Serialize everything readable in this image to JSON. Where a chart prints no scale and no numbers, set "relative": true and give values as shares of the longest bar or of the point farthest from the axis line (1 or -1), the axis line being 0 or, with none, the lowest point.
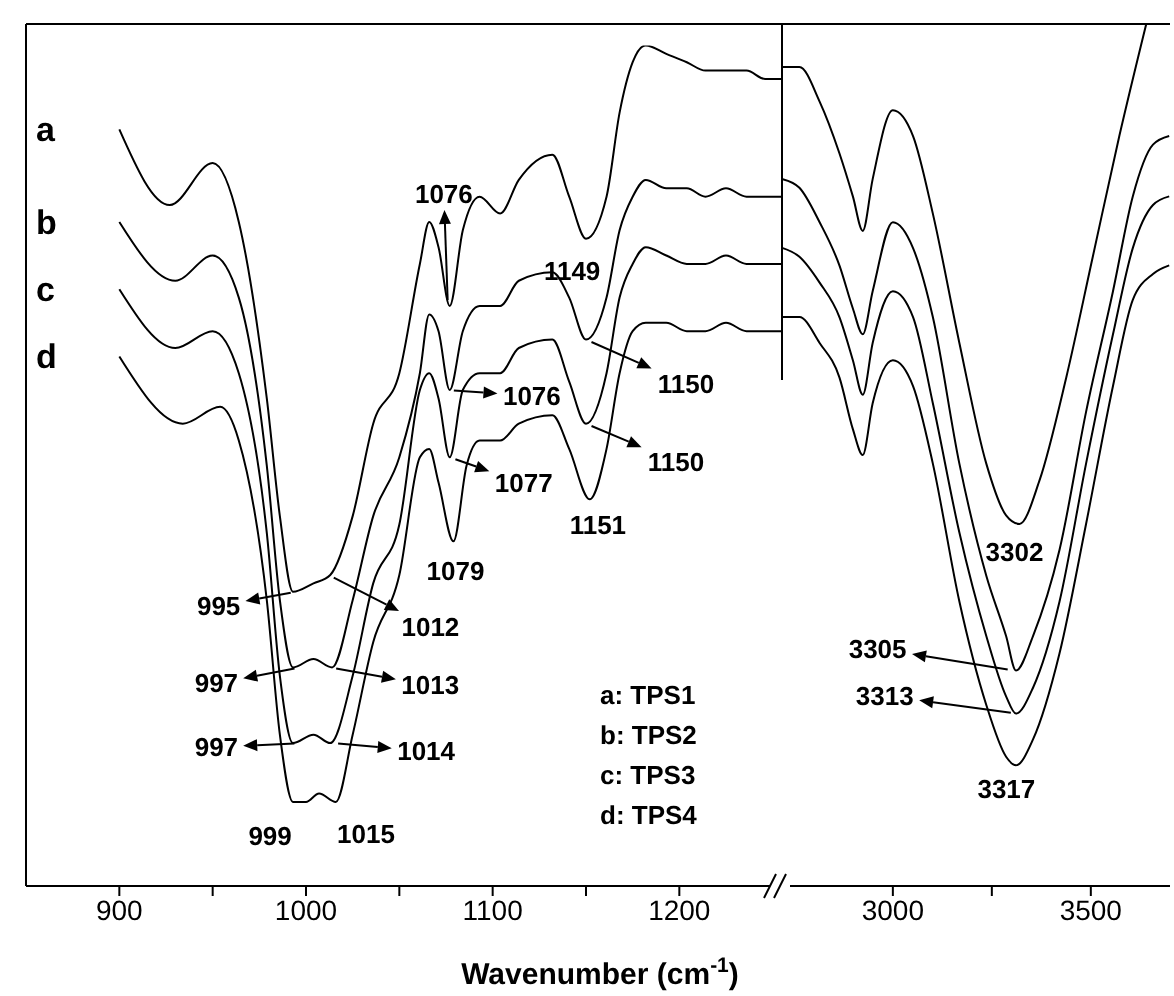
{
  "chart_data": [
    {
      "type": "line",
      "relative": true,
      "xlabel": "Wavenumber (cm$^{-1}$)",
      "xlim": [
        850,
        1255
      ],
      "xticks": [
        900,
        {
          "value": 950,
          "label": null
        },
        1000,
        {
          "value": 1050,
          "label": null
        },
        1100,
        {
          "value": 1150,
          "label": null
        },
        1200
      ],
      "series": [
        {
          "name": "a",
          "color": "#000000",
          "x": [
            900,
            927,
            950,
            964,
            979,
            986,
            993,
            1004,
            1013,
            1025,
            1036,
            1050,
            1061,
            1066,
            1071,
            1077,
            1084,
            1093,
            1104,
            1114,
            1132,
            1141,
            1150,
            1161,
            1168,
            1175,
            1182,
            1193,
            1204,
            1214,
            1225,
            1236,
            1246,
            1255
          ],
          "values": [
            0.9,
            0.81,
            0.86,
            0.79,
            0.58,
            0.44,
            0.35,
            0.36,
            0.37,
            0.44,
            0.55,
            0.61,
            0.74,
            0.79,
            0.76,
            0.69,
            0.78,
            0.82,
            0.8,
            0.84,
            0.87,
            0.82,
            0.77,
            0.82,
            0.92,
            0.98,
            1.0,
            0.99,
            0.98,
            0.97,
            0.97,
            0.97,
            0.96,
            0.96
          ]
        },
        {
          "name": "b",
          "color": "#000000",
          "x": [
            900,
            930,
            950,
            964,
            979,
            986,
            993,
            1004,
            1014,
            1025,
            1036,
            1050,
            1061,
            1066,
            1071,
            1077,
            1084,
            1093,
            1104,
            1114,
            1132,
            1141,
            1150,
            1161,
            1168,
            1175,
            1182,
            1193,
            1204,
            1214,
            1225,
            1236,
            1246,
            1255
          ],
          "values": [
            0.79,
            0.72,
            0.75,
            0.7,
            0.5,
            0.34,
            0.26,
            0.27,
            0.26,
            0.34,
            0.44,
            0.51,
            0.61,
            0.68,
            0.66,
            0.59,
            0.66,
            0.69,
            0.69,
            0.72,
            0.73,
            0.7,
            0.65,
            0.7,
            0.78,
            0.82,
            0.84,
            0.83,
            0.83,
            0.82,
            0.83,
            0.82,
            0.82,
            0.82
          ]
        },
        {
          "name": "c",
          "color": "#000000",
          "x": [
            900,
            930,
            950,
            964,
            979,
            986,
            993,
            1004,
            1013,
            1025,
            1036,
            1050,
            1061,
            1066,
            1071,
            1077,
            1084,
            1093,
            1104,
            1114,
            1132,
            1141,
            1150,
            1161,
            1168,
            1175,
            1182,
            1193,
            1204,
            1214,
            1225,
            1236,
            1246,
            1255
          ],
          "values": [
            0.71,
            0.64,
            0.66,
            0.61,
            0.42,
            0.25,
            0.17,
            0.18,
            0.17,
            0.25,
            0.36,
            0.43,
            0.59,
            0.61,
            0.58,
            0.51,
            0.59,
            0.61,
            0.61,
            0.64,
            0.65,
            0.6,
            0.55,
            0.61,
            0.7,
            0.74,
            0.76,
            0.75,
            0.74,
            0.74,
            0.75,
            0.74,
            0.74,
            0.74
          ]
        },
        {
          "name": "d",
          "color": "#000000",
          "x": [
            900,
            934,
            954,
            964,
            979,
            986,
            993,
            1000,
            1007,
            1016,
            1025,
            1036,
            1050,
            1061,
            1066,
            1071,
            1079,
            1086,
            1093,
            1104,
            1114,
            1132,
            1141,
            1152,
            1161,
            1168,
            1175,
            1182,
            1193,
            1204,
            1214,
            1225,
            1236,
            1246,
            1255
          ],
          "values": [
            0.63,
            0.55,
            0.57,
            0.53,
            0.34,
            0.18,
            0.1,
            0.1,
            0.11,
            0.1,
            0.18,
            0.29,
            0.37,
            0.51,
            0.52,
            0.48,
            0.41,
            0.5,
            0.53,
            0.53,
            0.55,
            0.56,
            0.52,
            0.46,
            0.52,
            0.61,
            0.66,
            0.67,
            0.67,
            0.66,
            0.66,
            0.67,
            0.66,
            0.66,
            0.66
          ]
        }
      ],
      "annotations": [
        {
          "text": "1076",
          "x": 1076,
          "y": 0.59
        },
        {
          "text": "1149",
          "x": 1149,
          "y": 0.77
        },
        {
          "text": "1150",
          "x": 1150,
          "y": 0.65
        },
        {
          "text": "1076",
          "x": 1076,
          "y": 0.69
        },
        {
          "text": "1150",
          "x": 1150,
          "y": 0.55
        },
        {
          "text": "1077",
          "x": 1077,
          "y": 0.51
        },
        {
          "text": "1151",
          "x": 1151,
          "y": 0.46
        },
        {
          "text": "1079",
          "x": 1079,
          "y": 0.41
        },
        {
          "text": "995",
          "x": 995,
          "y": 0.35
        },
        {
          "text": "1012",
          "x": 1012,
          "y": 0.37
        },
        {
          "text": "997",
          "x": 997,
          "y": 0.26
        },
        {
          "text": "1013",
          "x": 1013,
          "y": 0.26
        },
        {
          "text": "997",
          "x": 997,
          "y": 0.17
        },
        {
          "text": "1014",
          "x": 1014,
          "y": 0.17
        },
        {
          "text": "999",
          "x": 999,
          "y": 0.1
        },
        {
          "text": "1015",
          "x": 1015,
          "y": 0.1
        },
        "a: TPS1",
        "b: TPS2",
        "c: TPS3",
        "d: TPS4"
      ]
    },
    {
      "type": "line",
      "relative": true,
      "xlim": [
        2720,
        3700
      ],
      "xticks": [
        3000,
        {
          "value": 3250,
          "label": null
        },
        3500
      ],
      "series": [
        {
          "color": "#000000",
          "x": [
            2722,
            2764,
            2815,
            2865,
            2899,
            2924,
            2949,
            3000,
            3051,
            3101,
            3168,
            3236,
            3286,
            3320,
            3370,
            3438,
            3505,
            3572,
            3640
          ],
          "values": [
            0.95,
            0.95,
            0.91,
            0.85,
            0.8,
            0.76,
            0.82,
            0.9,
            0.87,
            0.78,
            0.63,
            0.49,
            0.43,
            0.42,
            0.47,
            0.59,
            0.73,
            0.87,
            1.0
          ]
        },
        {
          "color": "#000000",
          "x": [
            2722,
            2764,
            2815,
            2865,
            2899,
            2924,
            2949,
            3000,
            3051,
            3101,
            3168,
            3236,
            3286,
            3311,
            3354,
            3421,
            3488,
            3556,
            3606,
            3657,
            3698
          ],
          "values": [
            0.82,
            0.81,
            0.77,
            0.72,
            0.67,
            0.64,
            0.69,
            0.77,
            0.74,
            0.66,
            0.49,
            0.36,
            0.29,
            0.25,
            0.29,
            0.39,
            0.55,
            0.69,
            0.8,
            0.86,
            0.87
          ]
        },
        {
          "color": "#000000",
          "x": [
            2722,
            2764,
            2815,
            2865,
            2899,
            2924,
            2949,
            3000,
            3051,
            3101,
            3168,
            3236,
            3286,
            3311,
            3354,
            3421,
            3488,
            3556,
            3606,
            3657,
            3698
          ],
          "values": [
            0.74,
            0.73,
            0.7,
            0.66,
            0.61,
            0.57,
            0.63,
            0.69,
            0.66,
            0.56,
            0.41,
            0.29,
            0.22,
            0.2,
            0.23,
            0.33,
            0.49,
            0.64,
            0.74,
            0.79,
            0.8
          ]
        },
        {
          "color": "#000000",
          "x": [
            2722,
            2764,
            2815,
            2865,
            2899,
            2924,
            2949,
            3000,
            3051,
            3101,
            3168,
            3236,
            3286,
            3311,
            3354,
            3421,
            3488,
            3556,
            3606,
            3657,
            3698
          ],
          "values": [
            0.66,
            0.66,
            0.63,
            0.59,
            0.53,
            0.5,
            0.56,
            0.61,
            0.58,
            0.49,
            0.33,
            0.21,
            0.15,
            0.14,
            0.17,
            0.27,
            0.42,
            0.58,
            0.68,
            0.71,
            0.72
          ]
        }
      ],
      "annotations": [
        {
          "text": "3302",
          "x": 3302,
          "y": 0.42
        },
        {
          "text": "3305",
          "x": 3305,
          "y": 0.25
        },
        {
          "text": "3313",
          "x": 3313,
          "y": 0.2
        },
        {
          "text": "3317",
          "x": 3317,
          "y": 0.14
        }
      ]
    }
  ]
}
